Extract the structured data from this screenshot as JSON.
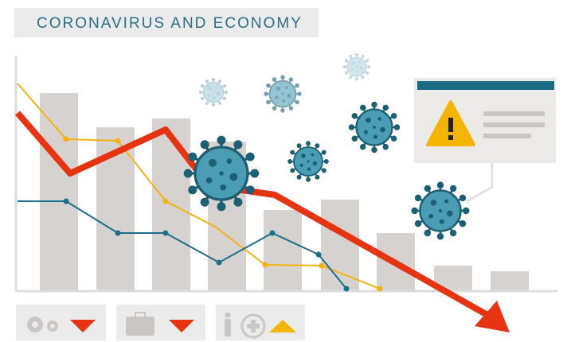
{
  "header": {
    "title": "CORONAVIRUS AND ECONOMY"
  }
}
